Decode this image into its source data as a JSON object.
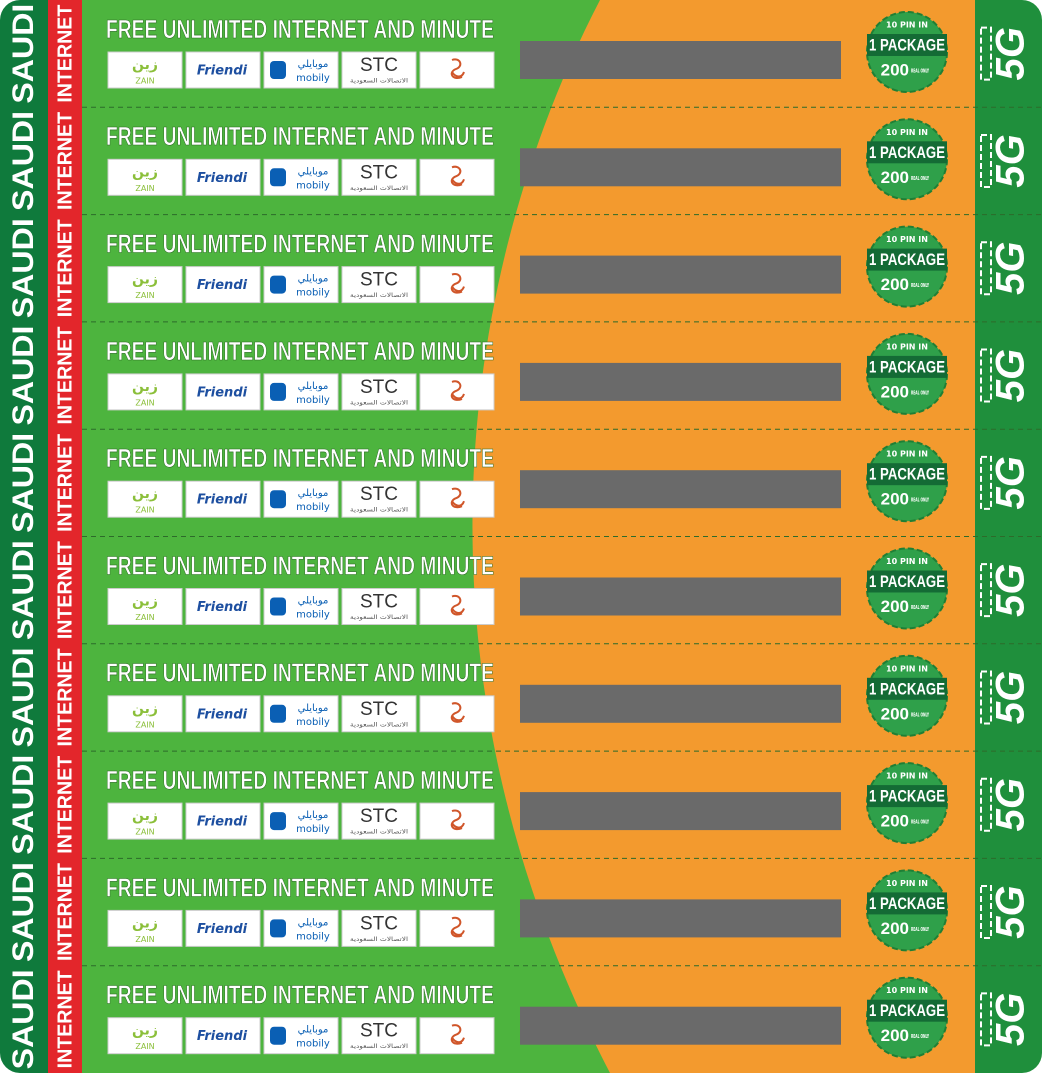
{
  "strip": {
    "saudi": [
      "SAUDI",
      "SAUDI",
      "SAUDI",
      "SAUDI",
      "SAUDI",
      "SAUDI",
      "SAUDI",
      "SAUDI",
      "SAUDI",
      "SAUDI"
    ],
    "internet": [
      "INTERNET",
      "INTERNET",
      "INTERNET",
      "INTERNET",
      "INTERNET",
      "INTERNET",
      "INTERNET",
      "INTERNET",
      "INTERNET",
      "INTERNET"
    ]
  },
  "cards": [
    {
      "title": "FREE UNLIMITED INTERNET AND MINUTE",
      "logos": [
        {
          "text": "زين",
          "sub": "ZAIN"
        },
        {
          "text": "Friendi"
        },
        {
          "text": "موبايلي",
          "sub": "mobily"
        },
        {
          "text": "STC",
          "sub": "الاتصالات السعودية"
        }
      ],
      "badge": {
        "pins": "10 PIN IN",
        "package": "1 PACKAGE",
        "price": "200",
        "note": "REAL ONLY"
      },
      "tag": "5G"
    },
    {
      "title": "FREE UNLIMITED INTERNET AND MINUTE",
      "logos": [
        {
          "text": "زين",
          "sub": "ZAIN"
        },
        {
          "text": "Friendi"
        },
        {
          "text": "موبايلي",
          "sub": "mobily"
        },
        {
          "text": "STC",
          "sub": "الاتصالات السعودية"
        }
      ],
      "badge": {
        "pins": "10 PIN IN",
        "package": "1 PACKAGE",
        "price": "200",
        "note": "REAL ONLY"
      },
      "tag": "5G"
    },
    {
      "title": "FREE UNLIMITED INTERNET AND MINUTE",
      "logos": [
        {
          "text": "زين",
          "sub": "ZAIN"
        },
        {
          "text": "Friendi"
        },
        {
          "text": "موبايلي",
          "sub": "mobily"
        },
        {
          "text": "STC",
          "sub": "الاتصالات السعودية"
        }
      ],
      "badge": {
        "pins": "10 PIN IN",
        "package": "1 PACKAGE",
        "price": "200",
        "note": "REAL ONLY"
      },
      "tag": "5G"
    },
    {
      "title": "FREE UNLIMITED INTERNET AND MINUTE",
      "logos": [
        {
          "text": "زين",
          "sub": "ZAIN"
        },
        {
          "text": "Friendi"
        },
        {
          "text": "موبايلي",
          "sub": "mobily"
        },
        {
          "text": "STC",
          "sub": "الاتصالات السعودية"
        }
      ],
      "badge": {
        "pins": "10 PIN IN",
        "package": "1 PACKAGE",
        "price": "200",
        "note": "REAL ONLY"
      },
      "tag": "5G"
    },
    {
      "title": "FREE UNLIMITED INTERNET AND MINUTE",
      "logos": [
        {
          "text": "زين",
          "sub": "ZAIN"
        },
        {
          "text": "Friendi"
        },
        {
          "text": "موبايلي",
          "sub": "mobily"
        },
        {
          "text": "STC",
          "sub": "الاتصالات السعودية"
        }
      ],
      "badge": {
        "pins": "10 PIN IN",
        "package": "1 PACKAGE",
        "price": "200",
        "note": "REAL ONLY"
      },
      "tag": "5G"
    },
    {
      "title": "FREE UNLIMITED INTERNET AND MINUTE",
      "logos": [
        {
          "text": "زين",
          "sub": "ZAIN"
        },
        {
          "text": "Friendi"
        },
        {
          "text": "موبايلي",
          "sub": "mobily"
        },
        {
          "text": "STC",
          "sub": "الاتصالات السعودية"
        }
      ],
      "badge": {
        "pins": "10 PIN IN",
        "package": "1 PACKAGE",
        "price": "200",
        "note": "REAL ONLY"
      },
      "tag": "5G"
    },
    {
      "title": "FREE UNLIMITED INTERNET AND MINUTE",
      "logos": [
        {
          "text": "زين",
          "sub": "ZAIN"
        },
        {
          "text": "Friendi"
        },
        {
          "text": "موبايلي",
          "sub": "mobily"
        },
        {
          "text": "STC",
          "sub": "الاتصالات السعودية"
        }
      ],
      "badge": {
        "pins": "10 PIN IN",
        "package": "1 PACKAGE",
        "price": "200",
        "note": "REAL ONLY"
      },
      "tag": "5G"
    },
    {
      "title": "FREE UNLIMITED INTERNET AND MINUTE",
      "logos": [
        {
          "text": "زين",
          "sub": "ZAIN"
        },
        {
          "text": "Friendi"
        },
        {
          "text": "موبايلي",
          "sub": "mobily"
        },
        {
          "text": "STC",
          "sub": "الاتصالات السعودية"
        }
      ],
      "badge": {
        "pins": "10 PIN IN",
        "package": "1 PACKAGE",
        "price": "200",
        "note": "REAL ONLY"
      },
      "tag": "5G"
    },
    {
      "title": "FREE UNLIMITED INTERNET AND MINUTE",
      "logos": [
        {
          "text": "زين",
          "sub": "ZAIN"
        },
        {
          "text": "Friendi"
        },
        {
          "text": "موبايلي",
          "sub": "mobily"
        },
        {
          "text": "STC",
          "sub": "الاتصالات السعودية"
        }
      ],
      "badge": {
        "pins": "10 PIN IN",
        "package": "1 PACKAGE",
        "price": "200",
        "note": "REAL ONLY"
      },
      "tag": "5G"
    },
    {
      "title": "FREE UNLIMITED INTERNET AND MINUTE",
      "logos": [
        {
          "text": "زين",
          "sub": "ZAIN"
        },
        {
          "text": "Friendi"
        },
        {
          "text": "موبايلي",
          "sub": "mobily"
        },
        {
          "text": "STC",
          "sub": "الاتصالات السعودية"
        }
      ],
      "badge": {
        "pins": "10 PIN IN",
        "package": "1 PACKAGE",
        "price": "200",
        "note": "REAL ONLY"
      },
      "tag": "5G"
    }
  ]
}
